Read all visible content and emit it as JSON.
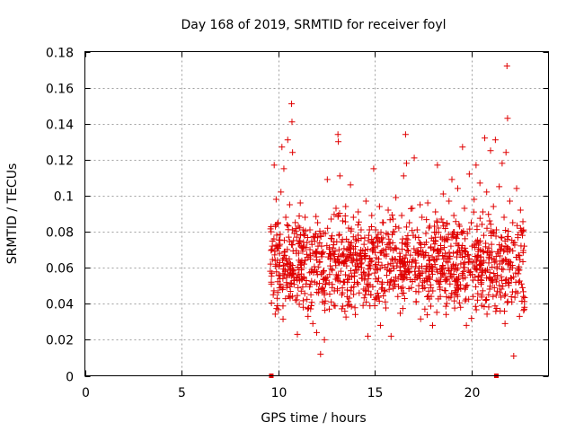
{
  "chart_data": {
    "type": "scatter",
    "title": "Day 168 of 2019, SRMTID for receiver foyl",
    "xlabel": "GPS time / hours",
    "ylabel": "SRMTID / TECUs",
    "xlim": [
      0,
      24
    ],
    "ylim": [
      0,
      0.18
    ],
    "xticks": [
      0,
      5,
      10,
      15,
      20
    ],
    "xtick_labels": [
      "0",
      "5",
      "10",
      "15",
      "20"
    ],
    "yticks": [
      0,
      0.02,
      0.04,
      0.06,
      0.08,
      0.1,
      0.12,
      0.14,
      0.16,
      0.18
    ],
    "ytick_labels": [
      "0",
      "0.02",
      "0.04",
      "0.06",
      "0.08",
      "0.1",
      "0.12",
      "0.14",
      "0.16",
      "0.18"
    ],
    "grid": true,
    "marker": "plus",
    "color": "#e00000",
    "series": [
      {
        "name": "SRMTID",
        "points": [
          [
            9.6,
            0.058
          ],
          [
            9.65,
            0.052
          ],
          [
            9.7,
            0.072
          ],
          [
            9.75,
            0.045
          ],
          [
            9.8,
            0.117
          ],
          [
            9.85,
            0.064
          ],
          [
            9.9,
            0.098
          ],
          [
            9.95,
            0.043
          ],
          [
            10.0,
            0.085
          ],
          [
            10.05,
            0.061
          ],
          [
            10.1,
            0.073
          ],
          [
            10.15,
            0.102
          ],
          [
            10.2,
            0.127
          ],
          [
            10.25,
            0.054
          ],
          [
            10.3,
            0.115
          ],
          [
            10.35,
            0.069
          ],
          [
            10.4,
            0.088
          ],
          [
            10.45,
            0.049
          ],
          [
            10.5,
            0.131
          ],
          [
            10.55,
            0.077
          ],
          [
            10.6,
            0.095
          ],
          [
            10.65,
            0.062
          ],
          [
            10.7,
            0.151
          ],
          [
            10.72,
            0.141
          ],
          [
            10.75,
            0.124
          ],
          [
            10.8,
            0.057
          ],
          [
            10.85,
            0.079
          ],
          [
            10.9,
            0.042
          ],
          [
            10.95,
            0.068
          ],
          [
            11.0,
            0.023
          ],
          [
            11.05,
            0.083
          ],
          [
            11.1,
            0.055
          ],
          [
            11.15,
            0.096
          ],
          [
            11.2,
            0.047
          ],
          [
            11.25,
            0.071
          ],
          [
            11.3,
            0.038
          ],
          [
            11.35,
            0.062
          ],
          [
            11.4,
            0.088
          ],
          [
            11.45,
            0.051
          ],
          [
            11.5,
            0.074
          ],
          [
            11.55,
            0.033
          ],
          [
            11.6,
            0.066
          ],
          [
            11.65,
            0.081
          ],
          [
            11.7,
            0.045
          ],
          [
            11.75,
            0.059
          ],
          [
            11.8,
            0.029
          ],
          [
            11.85,
            0.077
          ],
          [
            11.9,
            0.052
          ],
          [
            11.95,
            0.068
          ],
          [
            12.0,
            0.024
          ],
          [
            12.05,
            0.085
          ],
          [
            12.1,
            0.048
          ],
          [
            12.15,
            0.063
          ],
          [
            12.2,
            0.012
          ],
          [
            12.25,
            0.072
          ],
          [
            12.3,
            0.041
          ],
          [
            12.35,
            0.058
          ],
          [
            12.4,
            0.02
          ],
          [
            12.45,
            0.079
          ],
          [
            12.5,
            0.053
          ],
          [
            12.55,
            0.109
          ],
          [
            12.6,
            0.066
          ],
          [
            12.65,
            0.037
          ],
          [
            12.7,
            0.061
          ],
          [
            12.75,
            0.087
          ],
          [
            12.8,
            0.049
          ],
          [
            12.85,
            0.071
          ],
          [
            12.9,
            0.039
          ],
          [
            12.95,
            0.064
          ],
          [
            13.0,
            0.093
          ],
          [
            13.05,
            0.055
          ],
          [
            13.1,
            0.134
          ],
          [
            13.12,
            0.13
          ],
          [
            13.15,
            0.078
          ],
          [
            13.2,
            0.111
          ],
          [
            13.25,
            0.058
          ],
          [
            13.3,
            0.045
          ],
          [
            13.35,
            0.086
          ],
          [
            13.4,
            0.067
          ],
          [
            13.45,
            0.052
          ],
          [
            13.5,
            0.094
          ],
          [
            13.55,
            0.061
          ],
          [
            13.6,
            0.039
          ],
          [
            13.65,
            0.082
          ],
          [
            13.7,
            0.071
          ],
          [
            13.75,
            0.106
          ],
          [
            13.8,
            0.049
          ],
          [
            13.85,
            0.063
          ],
          [
            13.9,
            0.088
          ],
          [
            13.95,
            0.057
          ],
          [
            14.0,
            0.034
          ],
          [
            14.05,
            0.075
          ],
          [
            14.1,
            0.062
          ],
          [
            14.15,
            0.091
          ],
          [
            14.2,
            0.046
          ],
          [
            14.25,
            0.068
          ],
          [
            14.3,
            0.081
          ],
          [
            14.35,
            0.054
          ],
          [
            14.4,
            0.039
          ],
          [
            14.45,
            0.073
          ],
          [
            14.5,
            0.065
          ],
          [
            14.55,
            0.097
          ],
          [
            14.6,
            0.051
          ],
          [
            14.65,
            0.022
          ],
          [
            14.7,
            0.078
          ],
          [
            14.75,
            0.061
          ],
          [
            14.8,
            0.045
          ],
          [
            14.85,
            0.089
          ],
          [
            14.9,
            0.069
          ],
          [
            14.95,
            0.115
          ],
          [
            15.0,
            0.057
          ],
          [
            15.05,
            0.081
          ],
          [
            15.1,
            0.043
          ],
          [
            15.15,
            0.072
          ],
          [
            15.2,
            0.063
          ],
          [
            15.25,
            0.094
          ],
          [
            15.3,
            0.028
          ],
          [
            15.35,
            0.076
          ],
          [
            15.4,
            0.052
          ],
          [
            15.45,
            0.085
          ],
          [
            15.5,
            0.067
          ],
          [
            15.55,
            0.041
          ],
          [
            15.6,
            0.079
          ],
          [
            15.65,
            0.059
          ],
          [
            15.7,
            0.092
          ],
          [
            15.75,
            0.048
          ],
          [
            15.8,
            0.074
          ],
          [
            15.85,
            0.022
          ],
          [
            15.9,
            0.065
          ],
          [
            15.95,
            0.087
          ],
          [
            16.0,
            0.053
          ],
          [
            16.05,
            0.071
          ],
          [
            16.1,
            0.099
          ],
          [
            16.15,
            0.061
          ],
          [
            16.2,
            0.044
          ],
          [
            16.25,
            0.082
          ],
          [
            16.3,
            0.068
          ],
          [
            16.35,
            0.055
          ],
          [
            16.4,
            0.089
          ],
          [
            16.45,
            0.076
          ],
          [
            16.5,
            0.111
          ],
          [
            16.55,
            0.063
          ],
          [
            16.6,
            0.134
          ],
          [
            16.65,
            0.118
          ],
          [
            16.7,
            0.072
          ],
          [
            16.75,
            0.058
          ],
          [
            16.8,
            0.085
          ],
          [
            16.85,
            0.067
          ],
          [
            16.9,
            0.049
          ],
          [
            16.95,
            0.093
          ],
          [
            17.0,
            0.078
          ],
          [
            17.05,
            0.121
          ],
          [
            17.1,
            0.064
          ],
          [
            17.15,
            0.041
          ],
          [
            17.2,
            0.081
          ],
          [
            17.25,
            0.069
          ],
          [
            17.3,
            0.056
          ],
          [
            17.35,
            0.095
          ],
          [
            17.4,
            0.073
          ],
          [
            17.45,
            0.088
          ],
          [
            17.5,
            0.052
          ],
          [
            17.55,
            0.066
          ],
          [
            17.6,
            0.037
          ],
          [
            17.65,
            0.079
          ],
          [
            17.7,
            0.061
          ],
          [
            17.75,
            0.096
          ],
          [
            17.8,
            0.047
          ],
          [
            17.85,
            0.083
          ],
          [
            17.9,
            0.071
          ],
          [
            17.95,
            0.058
          ],
          [
            18.0,
            0.028
          ],
          [
            18.05,
            0.075
          ],
          [
            18.1,
            0.064
          ],
          [
            18.15,
            0.091
          ],
          [
            18.2,
            0.053
          ],
          [
            18.25,
            0.117
          ],
          [
            18.3,
            0.082
          ],
          [
            18.35,
            0.069
          ],
          [
            18.4,
            0.044
          ],
          [
            18.45,
            0.087
          ],
          [
            18.5,
            0.076
          ],
          [
            18.55,
            0.101
          ],
          [
            18.6,
            0.057
          ],
          [
            18.65,
            0.068
          ],
          [
            18.7,
            0.034
          ],
          [
            18.75,
            0.084
          ],
          [
            18.8,
            0.063
          ],
          [
            18.85,
            0.097
          ],
          [
            18.9,
            0.051
          ],
          [
            18.95,
            0.072
          ],
          [
            19.0,
            0.109
          ],
          [
            19.05,
            0.061
          ],
          [
            19.1,
            0.089
          ],
          [
            19.15,
            0.045
          ],
          [
            19.2,
            0.077
          ],
          [
            19.25,
            0.066
          ],
          [
            19.3,
            0.104
          ],
          [
            19.35,
            0.055
          ],
          [
            19.4,
            0.083
          ],
          [
            19.45,
            0.038
          ],
          [
            19.5,
            0.071
          ],
          [
            19.55,
            0.127
          ],
          [
            19.6,
            0.062
          ],
          [
            19.65,
            0.093
          ],
          [
            19.7,
            0.049
          ],
          [
            19.75,
            0.028
          ],
          [
            19.8,
            0.079
          ],
          [
            19.85,
            0.067
          ],
          [
            19.9,
            0.112
          ],
          [
            19.95,
            0.056
          ],
          [
            20.0,
            0.085
          ],
          [
            20.05,
            0.072
          ],
          [
            20.1,
            0.044
          ],
          [
            20.15,
            0.098
          ],
          [
            20.2,
            0.061
          ],
          [
            20.25,
            0.117
          ],
          [
            20.3,
            0.083
          ],
          [
            20.35,
            0.053
          ],
          [
            20.4,
            0.074
          ],
          [
            20.45,
            0.107
          ],
          [
            20.5,
            0.066
          ],
          [
            20.55,
            0.039
          ],
          [
            20.6,
            0.091
          ],
          [
            20.65,
            0.078
          ],
          [
            20.7,
            0.132
          ],
          [
            20.75,
            0.058
          ],
          [
            20.8,
            0.102
          ],
          [
            20.85,
            0.069
          ],
          [
            20.9,
            0.045
          ],
          [
            20.95,
            0.086
          ],
          [
            21.0,
            0.125
          ],
          [
            21.05,
            0.073
          ],
          [
            21.1,
            0.052
          ],
          [
            21.15,
            0.094
          ],
          [
            21.2,
            0.063
          ],
          [
            21.25,
            0.131
          ],
          [
            21.3,
            0.081
          ],
          [
            21.35,
            0.047
          ],
          [
            21.4,
            0.068
          ],
          [
            21.45,
            0.105
          ],
          [
            21.5,
            0.036
          ],
          [
            21.55,
            0.077
          ],
          [
            21.6,
            0.118
          ],
          [
            21.65,
            0.059
          ],
          [
            21.7,
            0.088
          ],
          [
            21.75,
            0.029
          ],
          [
            21.8,
            0.124
          ],
          [
            21.85,
            0.172
          ],
          [
            21.88,
            0.143
          ],
          [
            21.9,
            0.071
          ],
          [
            21.95,
            0.052
          ],
          [
            22.0,
            0.097
          ],
          [
            22.05,
            0.063
          ],
          [
            22.1,
            0.041
          ],
          [
            22.15,
            0.085
          ],
          [
            22.2,
            0.011
          ],
          [
            22.25,
            0.074
          ],
          [
            22.3,
            0.057
          ],
          [
            22.35,
            0.104
          ],
          [
            22.4,
            0.046
          ],
          [
            22.45,
            0.067
          ],
          [
            22.5,
            0.033
          ],
          [
            22.55,
            0.092
          ],
          [
            22.6,
            0.051
          ],
          [
            22.65,
            0.078
          ],
          [
            22.7,
            0.044
          ]
        ]
      }
    ],
    "density_cloud": {
      "description": "dense band of points between 9.6 and 22.8 hours",
      "x_range": [
        9.6,
        22.8
      ],
      "typical_range": [
        0.035,
        0.095
      ],
      "center": 0.062
    },
    "axis_markers": [
      9.65,
      21.3
    ]
  }
}
